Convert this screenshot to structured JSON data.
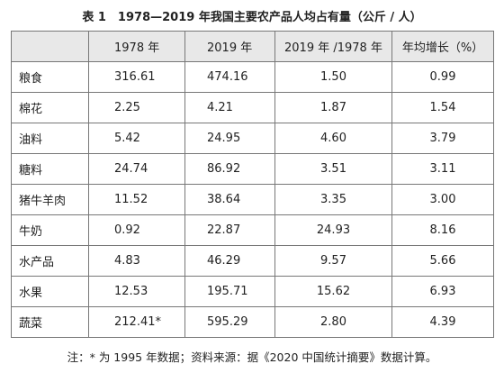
{
  "header": {
    "title": "表 1　1978—2019 年我国主要农产品人均占有量（公斤 / 人）"
  },
  "table": {
    "columns": [
      "",
      "1978 年",
      "2019 年",
      "2019 年 /1978 年",
      "年均增长（%）"
    ],
    "rows": [
      [
        "粮食",
        "316.61",
        "474.16",
        "1.50",
        "0.99"
      ],
      [
        "棉花",
        "2.25",
        "4.21",
        "1.87",
        "1.54"
      ],
      [
        "油料",
        "5.42",
        "24.95",
        "4.60",
        "3.79"
      ],
      [
        "糖料",
        "24.74",
        "86.92",
        "3.51",
        "3.11"
      ],
      [
        "猪牛羊肉",
        "11.52",
        "38.64",
        "3.35",
        "3.00"
      ],
      [
        "牛奶",
        "0.92",
        "22.87",
        "24.93",
        "8.16"
      ],
      [
        "水产品",
        "4.83",
        "46.29",
        "9.57",
        "5.66"
      ],
      [
        "水果",
        "12.53",
        "195.71",
        "15.62",
        "6.93"
      ],
      [
        "蔬菜",
        "212.41*",
        "595.29",
        "2.80",
        "4.39"
      ]
    ]
  },
  "note": "注：* 为 1995 年数据；资料来源：据《2020 中国统计摘要》数据计算。"
}
